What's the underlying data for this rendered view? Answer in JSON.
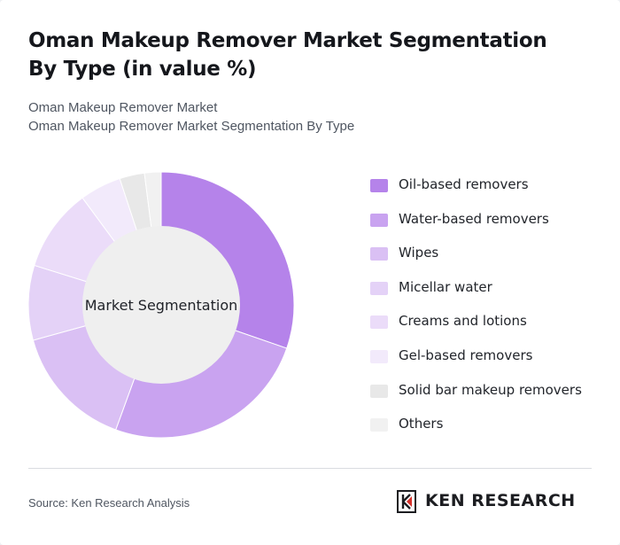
{
  "header": {
    "title": "Oman Makeup Remover Market Segmentation By Type (in value %)",
    "subtitle_1": "Oman Makeup Remover Market",
    "subtitle_2": "Oman Makeup Remover Market Segmentation By Type"
  },
  "chart_data": {
    "type": "pie",
    "variant": "donut",
    "center_label": "Market Segmentation",
    "legend_position": "right",
    "categories": [
      "Oil-based removers",
      "Water-based removers",
      "Wipes",
      "Micellar water",
      "Creams and lotions",
      "Gel-based removers",
      "Solid bar makeup removers",
      "Others"
    ],
    "values": [
      30,
      25,
      15,
      9,
      10,
      5,
      3,
      2
    ],
    "colors": [
      "#b583ea",
      "#c9a3f0",
      "#dac0f4",
      "#e4d2f7",
      "#ebdcf9",
      "#f2eafb",
      "#e8e8e8",
      "#f1f1f1"
    ]
  },
  "footer": {
    "source": "Source: Ken Research Analysis",
    "brand": "KEN RESEARCH",
    "brand_icon": "ken-research-logo-icon"
  }
}
